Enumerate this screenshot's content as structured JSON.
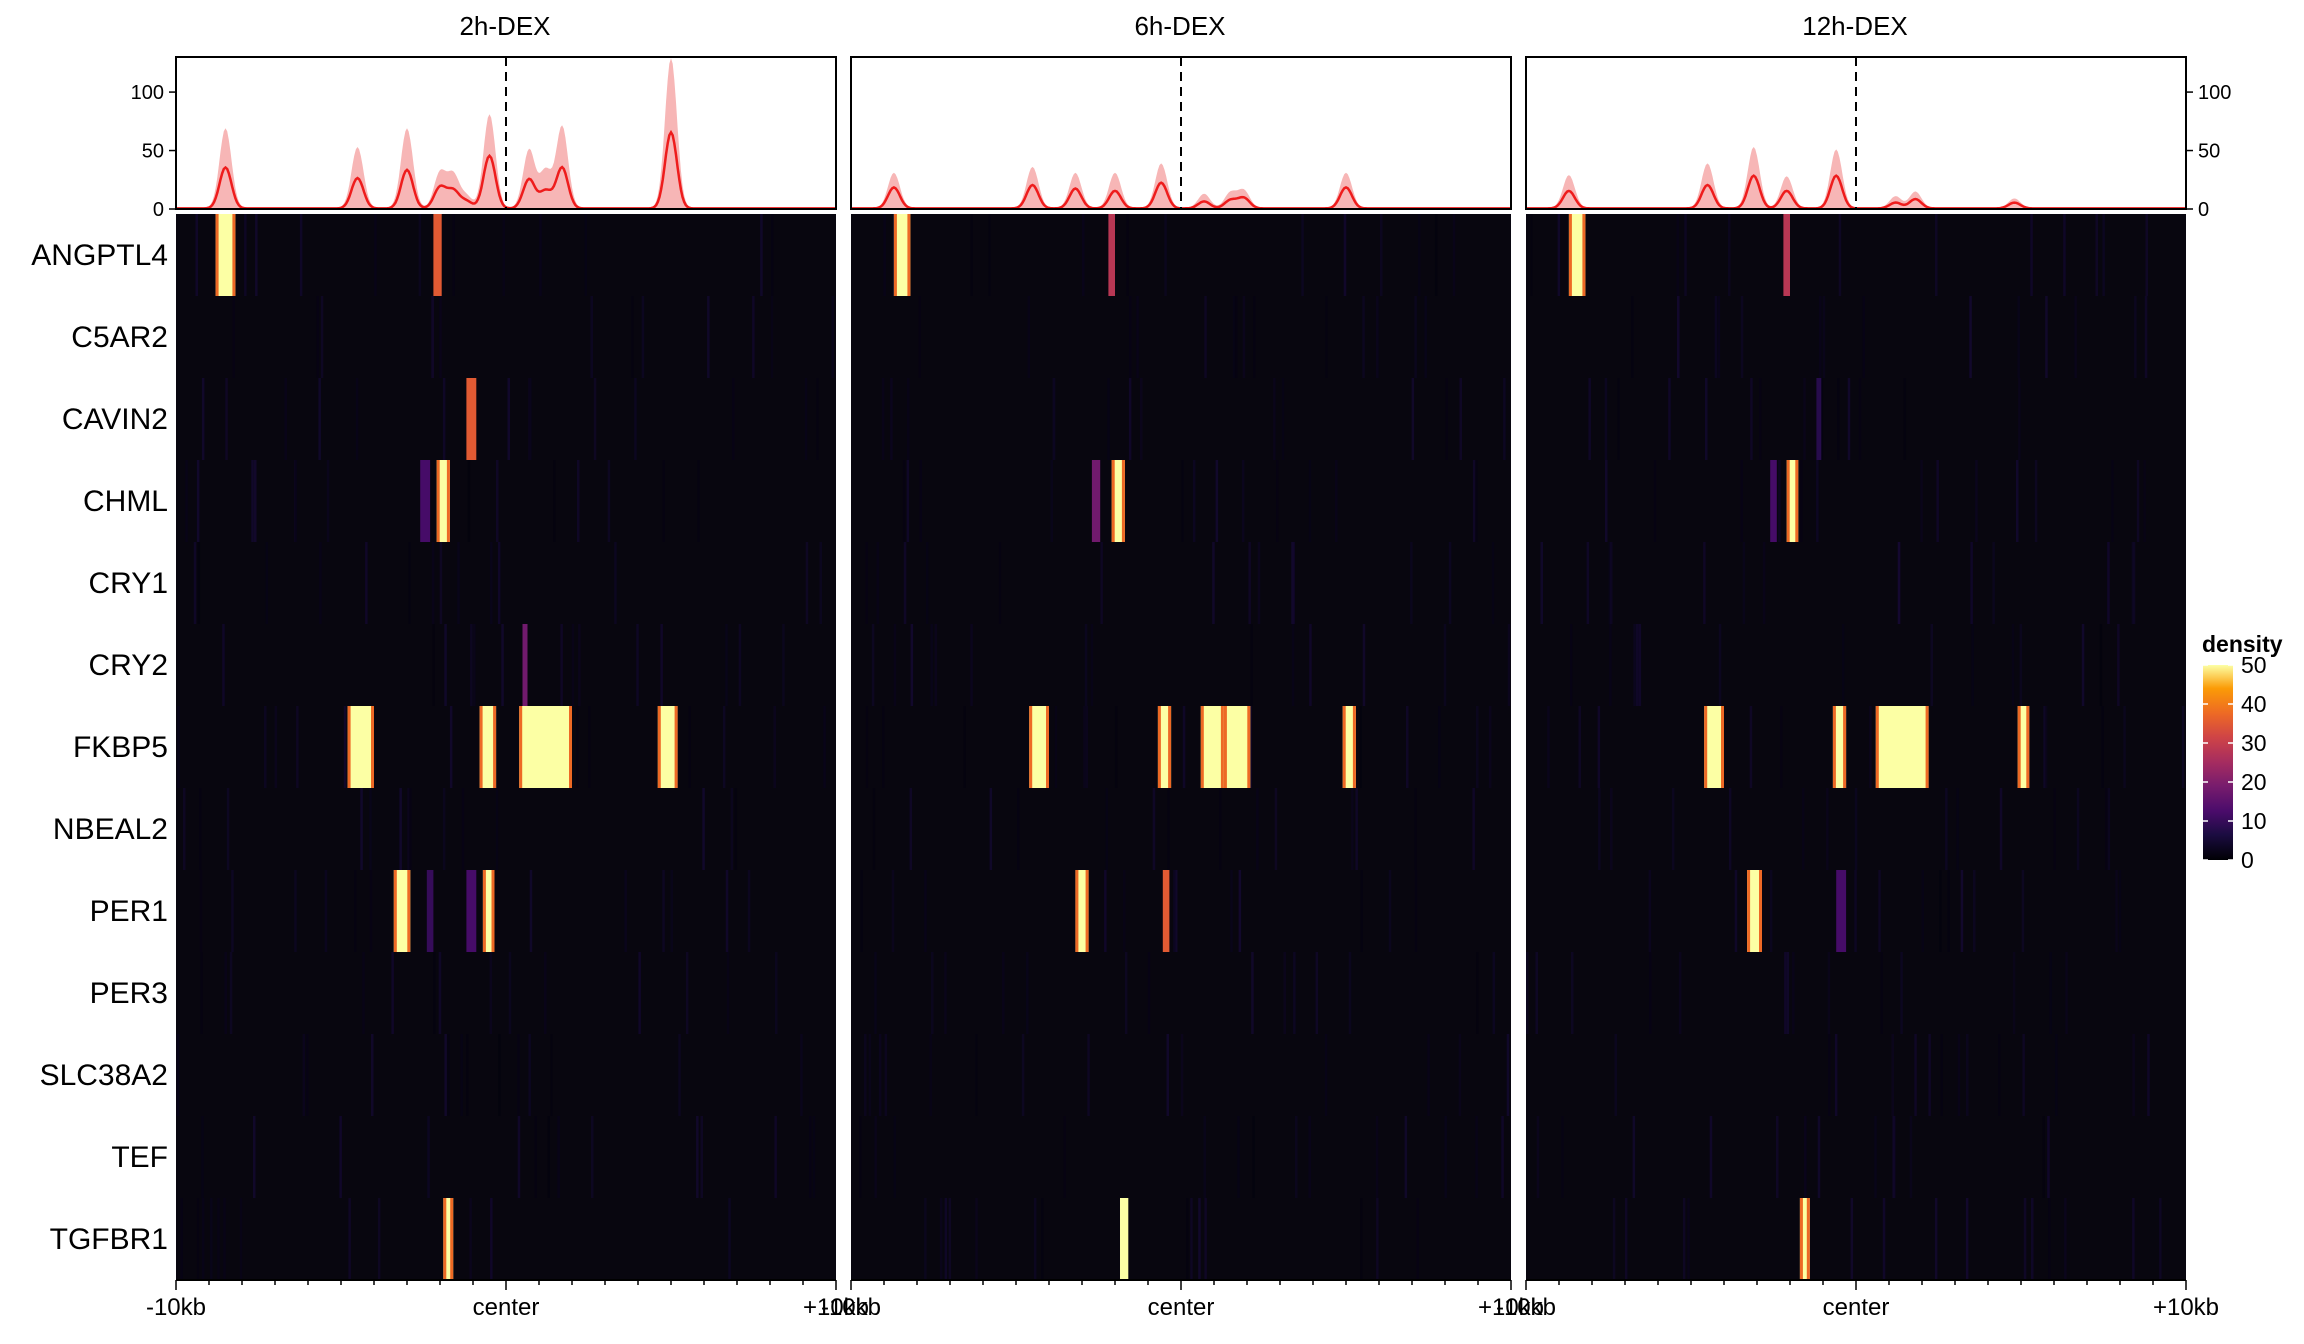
{
  "figure": {
    "panels": [
      "2h-DEX",
      "6h-DEX",
      "12h-DEX"
    ],
    "genes": [
      "ANGPTL4",
      "C5AR2",
      "CAVIN2",
      "CHML",
      "CRY1",
      "CRY2",
      "FKBP5",
      "NBEAL2",
      "PER1",
      "PER3",
      "SLC38A2",
      "TEF",
      "TGFBR1"
    ],
    "x_ticks": [
      "-10kb",
      "center",
      "+10kb"
    ],
    "profile_y_ticks": [
      "0",
      "50",
      "100"
    ],
    "legend": {
      "title": "density",
      "ticks": [
        "0",
        "10",
        "20",
        "30",
        "40",
        "50"
      ]
    },
    "colors": {
      "profile_line": "#ee1c1c",
      "profile_band": "#f7b6b6",
      "heat_background": "#08060f"
    }
  },
  "chart_data": {
    "type": "heatmap",
    "title": "",
    "x_range_kb": [
      -10,
      10
    ],
    "profile_ylim": [
      0,
      130
    ],
    "color_scale": {
      "palette": "inferno",
      "min": 0,
      "max": 50
    },
    "panels": [
      {
        "name": "2h-DEX",
        "profile_peaks": [
          {
            "x": -8.5,
            "mean": 35,
            "upper": 68
          },
          {
            "x": -4.5,
            "mean": 26,
            "upper": 52
          },
          {
            "x": -3.0,
            "mean": 33,
            "upper": 68
          },
          {
            "x": -2.0,
            "mean": 18,
            "upper": 30
          },
          {
            "x": -1.6,
            "mean": 15,
            "upper": 28
          },
          {
            "x": -1.2,
            "mean": 6,
            "upper": 10
          },
          {
            "x": -0.5,
            "mean": 45,
            "upper": 80
          },
          {
            "x": 0.7,
            "mean": 25,
            "upper": 50
          },
          {
            "x": 1.2,
            "mean": 15,
            "upper": 32
          },
          {
            "x": 1.7,
            "mean": 35,
            "upper": 70
          },
          {
            "x": 5.0,
            "mean": 65,
            "upper": 128
          }
        ],
        "heatmap": {
          "ANGPTL4": [
            {
              "x": -8.8,
              "width": 0.6,
              "value": 50
            },
            {
              "x": -2.2,
              "width": 0.25,
              "value": 35
            }
          ],
          "CAVIN2": [
            {
              "x": -1.2,
              "width": 0.3,
              "value": 35
            }
          ],
          "CHML": [
            {
              "x": -2.6,
              "width": 0.3,
              "value": 12
            },
            {
              "x": -2.1,
              "width": 0.4,
              "value": 50
            }
          ],
          "CRY2": [
            {
              "x": 0.5,
              "width": 0.15,
              "value": 18
            }
          ],
          "FKBP5": [
            {
              "x": -4.8,
              "width": 0.8,
              "value": 50
            },
            {
              "x": -0.8,
              "width": 0.5,
              "value": 50
            },
            {
              "x": 0.4,
              "width": 1.6,
              "value": 50
            },
            {
              "x": 4.6,
              "width": 0.6,
              "value": 50
            }
          ],
          "PER1": [
            {
              "x": -3.4,
              "width": 0.5,
              "value": 50
            },
            {
              "x": -2.4,
              "width": 0.2,
              "value": 10
            },
            {
              "x": -1.2,
              "width": 0.3,
              "value": 12
            },
            {
              "x": -0.7,
              "width": 0.35,
              "value": 50
            }
          ],
          "TGFBR1": [
            {
              "x": -1.9,
              "width": 0.3,
              "value": 50
            }
          ]
        }
      },
      {
        "name": "6h-DEX",
        "profile_peaks": [
          {
            "x": -8.7,
            "mean": 18,
            "upper": 30
          },
          {
            "x": -4.5,
            "mean": 20,
            "upper": 35
          },
          {
            "x": -3.2,
            "mean": 17,
            "upper": 30
          },
          {
            "x": -2.0,
            "mean": 15,
            "upper": 30
          },
          {
            "x": -0.6,
            "mean": 22,
            "upper": 38
          },
          {
            "x": 0.7,
            "mean": 6,
            "upper": 12
          },
          {
            "x": 1.5,
            "mean": 7,
            "upper": 13
          },
          {
            "x": 1.9,
            "mean": 9,
            "upper": 15
          },
          {
            "x": 5.0,
            "mean": 18,
            "upper": 30
          }
        ],
        "heatmap": {
          "ANGPTL4": [
            {
              "x": -8.7,
              "width": 0.5,
              "value": 50
            },
            {
              "x": -2.2,
              "width": 0.2,
              "value": 28
            }
          ],
          "CHML": [
            {
              "x": -2.7,
              "width": 0.25,
              "value": 18
            },
            {
              "x": -2.1,
              "width": 0.4,
              "value": 50
            }
          ],
          "FKBP5": [
            {
              "x": -4.6,
              "width": 0.6,
              "value": 50
            },
            {
              "x": -0.7,
              "width": 0.4,
              "value": 50
            },
            {
              "x": 0.6,
              "width": 0.7,
              "value": 50
            },
            {
              "x": 1.3,
              "width": 0.8,
              "value": 50
            },
            {
              "x": 4.9,
              "width": 0.4,
              "value": 50
            }
          ],
          "PER1": [
            {
              "x": -3.2,
              "width": 0.4,
              "value": 50
            },
            {
              "x": -0.55,
              "width": 0.2,
              "value": 35
            }
          ],
          "TGFBR1": [
            {
              "x": -1.85,
              "width": 0.25,
              "value": 50
            }
          ]
        }
      },
      {
        "name": "12h-DEX",
        "profile_peaks": [
          {
            "x": -8.7,
            "mean": 15,
            "upper": 28
          },
          {
            "x": -4.5,
            "mean": 20,
            "upper": 38
          },
          {
            "x": -3.1,
            "mean": 28,
            "upper": 52
          },
          {
            "x": -2.1,
            "mean": 15,
            "upper": 27
          },
          {
            "x": -0.6,
            "mean": 28,
            "upper": 50
          },
          {
            "x": 1.2,
            "mean": 5,
            "upper": 10
          },
          {
            "x": 1.8,
            "mean": 8,
            "upper": 14
          },
          {
            "x": 4.8,
            "mean": 5,
            "upper": 8
          }
        ],
        "heatmap": {
          "ANGPTL4": [
            {
              "x": -8.7,
              "width": 0.5,
              "value": 50
            },
            {
              "x": -2.2,
              "width": 0.2,
              "value": 28
            }
          ],
          "CAVIN2": [
            {
              "x": -1.2,
              "width": 0.15,
              "value": 8
            }
          ],
          "CHML": [
            {
              "x": -2.6,
              "width": 0.2,
              "value": 12
            },
            {
              "x": -2.1,
              "width": 0.35,
              "value": 50
            }
          ],
          "FKBP5": [
            {
              "x": -4.6,
              "width": 0.6,
              "value": 50
            },
            {
              "x": -0.7,
              "width": 0.4,
              "value": 50
            },
            {
              "x": 0.6,
              "width": 1.6,
              "value": 50
            },
            {
              "x": 4.9,
              "width": 0.35,
              "value": 50
            }
          ],
          "PER1": [
            {
              "x": -3.3,
              "width": 0.45,
              "value": 50
            },
            {
              "x": -0.6,
              "width": 0.3,
              "value": 12
            }
          ],
          "TGFBR1": [
            {
              "x": -1.7,
              "width": 0.3,
              "value": 50
            }
          ]
        }
      }
    ]
  }
}
